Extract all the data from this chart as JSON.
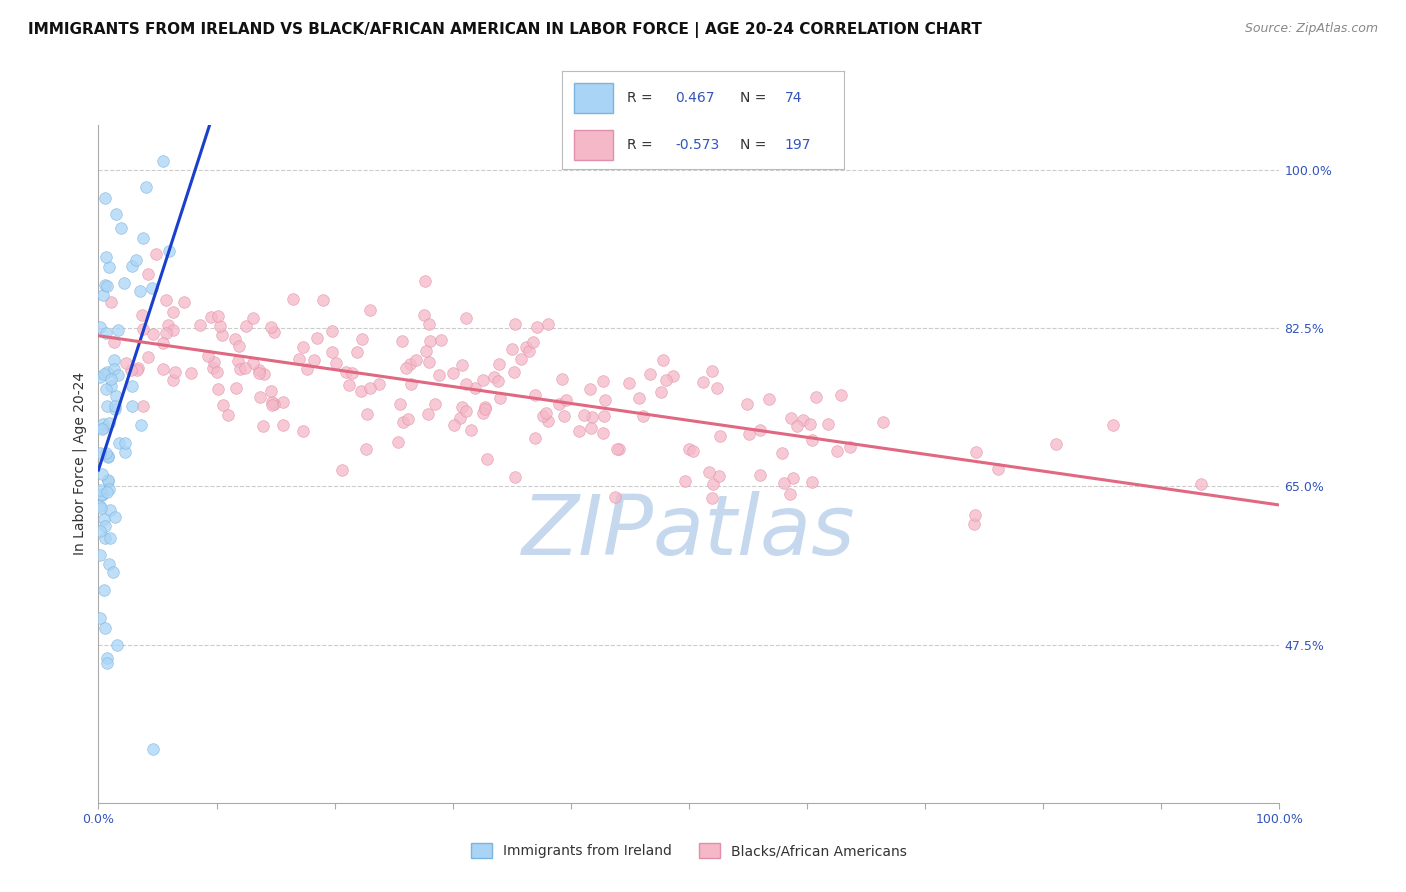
{
  "title": "IMMIGRANTS FROM IRELAND VS BLACK/AFRICAN AMERICAN IN LABOR FORCE | AGE 20-24 CORRELATION CHART",
  "source": "Source: ZipAtlas.com",
  "ylabel": "In Labor Force | Age 20-24",
  "watermark": "ZIPatlas",
  "series": [
    {
      "name": "Immigrants from Ireland",
      "color": "#aad4f5",
      "edge_color": "#7ab4e0",
      "R": 0.467,
      "N": 74,
      "trend_color": "#1a3fcc"
    },
    {
      "name": "Blacks/African Americans",
      "color": "#f5b8c8",
      "edge_color": "#e090a8",
      "R": -0.573,
      "N": 197,
      "trend_color": "#e06880"
    }
  ],
  "xlim": [
    0.0,
    1.0
  ],
  "ylim": [
    0.3,
    1.05
  ],
  "yticks": [
    0.475,
    0.65,
    0.825,
    1.0
  ],
  "ytick_labels": [
    "47.5%",
    "65.0%",
    "82.5%",
    "100.0%"
  ],
  "xtick_labels": [
    "0.0%",
    "100.0%"
  ],
  "legend_box_colors": [
    "#aad4f5",
    "#f5b8c8"
  ],
  "grid_color": "#cccccc",
  "background_color": "#ffffff",
  "title_fontsize": 11,
  "axis_label_fontsize": 10,
  "tick_fontsize": 9,
  "watermark_color": "#c5d8ee",
  "watermark_fontsize": 60
}
